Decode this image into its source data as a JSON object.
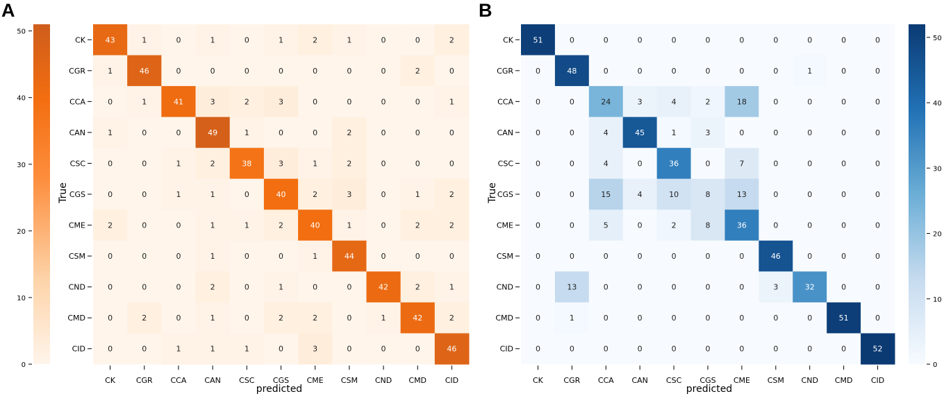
{
  "chart_data": [
    {
      "panel": "A",
      "type": "heatmap",
      "colormap": "oranges",
      "colorbar_side": "left",
      "xlabel": "predicted",
      "ylabel": "True",
      "labels": [
        "CK",
        "CGR",
        "CCA",
        "CAN",
        "CSC",
        "CGS",
        "CME",
        "CSM",
        "CND",
        "CMD",
        "CID"
      ],
      "matrix": [
        [
          43,
          1,
          0,
          1,
          0,
          1,
          2,
          1,
          0,
          0,
          2
        ],
        [
          1,
          46,
          0,
          0,
          0,
          0,
          0,
          0,
          0,
          2,
          0
        ],
        [
          0,
          1,
          41,
          3,
          2,
          3,
          0,
          0,
          0,
          0,
          1
        ],
        [
          1,
          0,
          0,
          49,
          1,
          0,
          0,
          2,
          0,
          0,
          0
        ],
        [
          0,
          0,
          1,
          2,
          38,
          3,
          1,
          2,
          0,
          0,
          0
        ],
        [
          0,
          0,
          1,
          1,
          0,
          40,
          2,
          3,
          0,
          1,
          2
        ],
        [
          2,
          0,
          0,
          1,
          1,
          2,
          40,
          1,
          0,
          2,
          2
        ],
        [
          0,
          0,
          0,
          1,
          0,
          0,
          1,
          44,
          0,
          0,
          0
        ],
        [
          0,
          0,
          0,
          2,
          0,
          1,
          0,
          0,
          42,
          2,
          1
        ],
        [
          0,
          2,
          0,
          1,
          0,
          2,
          2,
          0,
          1,
          42,
          2
        ],
        [
          0,
          0,
          1,
          1,
          1,
          0,
          3,
          0,
          0,
          0,
          46
        ]
      ],
      "colorbar_ticks": [
        0,
        10,
        20,
        30,
        40,
        50
      ],
      "colorbar_range": [
        0,
        51
      ]
    },
    {
      "panel": "B",
      "type": "heatmap",
      "colormap": "blues",
      "colorbar_side": "right",
      "xlabel": "predicted",
      "ylabel": "True",
      "labels": [
        "CK",
        "CGR",
        "CCA",
        "CAN",
        "CSC",
        "CGS",
        "CME",
        "CSM",
        "CND",
        "CMD",
        "CID"
      ],
      "matrix": [
        [
          51,
          0,
          0,
          0,
          0,
          0,
          0,
          0,
          0,
          0,
          0
        ],
        [
          0,
          48,
          0,
          0,
          0,
          0,
          0,
          0,
          1,
          0,
          0
        ],
        [
          0,
          0,
          24,
          3,
          4,
          2,
          18,
          0,
          0,
          0,
          0
        ],
        [
          0,
          0,
          4,
          45,
          1,
          3,
          0,
          0,
          0,
          0,
          0
        ],
        [
          0,
          0,
          4,
          0,
          36,
          0,
          7,
          0,
          0,
          0,
          0
        ],
        [
          0,
          0,
          15,
          4,
          10,
          8,
          13,
          0,
          0,
          0,
          0
        ],
        [
          0,
          0,
          5,
          0,
          2,
          8,
          36,
          0,
          0,
          0,
          0
        ],
        [
          0,
          0,
          0,
          0,
          0,
          0,
          0,
          46,
          0,
          0,
          0
        ],
        [
          0,
          13,
          0,
          0,
          0,
          0,
          0,
          3,
          32,
          0,
          0
        ],
        [
          0,
          1,
          0,
          0,
          0,
          0,
          0,
          0,
          0,
          51,
          0
        ],
        [
          0,
          0,
          0,
          0,
          0,
          0,
          0,
          0,
          0,
          0,
          52
        ]
      ],
      "colorbar_ticks": [
        0,
        10,
        20,
        30,
        40,
        50
      ],
      "colorbar_range": [
        0,
        52
      ]
    }
  ]
}
